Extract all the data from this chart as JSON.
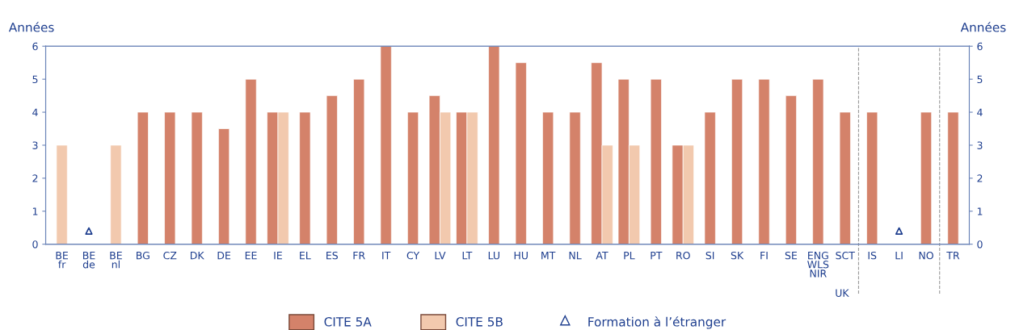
{
  "chart_data": {
    "type": "bar",
    "categories": [
      "BE\nfr",
      "BE\nde",
      "BE\nnl",
      "BG",
      "CZ",
      "DK",
      "DE",
      "EE",
      "IE",
      "EL",
      "ES",
      "FR",
      "IT",
      "CY",
      "LV",
      "LT",
      "LU",
      "HU",
      "MT",
      "NL",
      "AT",
      "PL",
      "PT",
      "RO",
      "SI",
      "SK",
      "FI",
      "SE",
      "ENG\nWLS\nNIR",
      "SCT",
      "IS",
      "LI",
      "NO",
      "TR"
    ],
    "series": [
      {
        "name": "CITE 5A",
        "color": "#d4826a",
        "values": [
          null,
          null,
          null,
          4,
          4,
          4,
          3.5,
          5,
          4,
          4,
          4.5,
          5,
          6,
          4,
          4.5,
          4,
          6,
          5.5,
          4,
          4,
          5.5,
          5,
          5,
          3,
          4,
          5,
          5,
          4.5,
          5,
          4,
          4,
          null,
          4,
          4
        ]
      },
      {
        "name": "CITE 5B",
        "color": "#f2c9ae",
        "values": [
          3,
          null,
          3,
          null,
          null,
          null,
          null,
          null,
          4,
          null,
          null,
          null,
          null,
          null,
          4,
          4,
          null,
          null,
          null,
          null,
          3,
          3,
          null,
          3,
          null,
          null,
          null,
          null,
          null,
          null,
          null,
          null,
          null,
          null
        ]
      },
      {
        "name": "Formation à l’étranger",
        "type": "scatter",
        "color": "#1f3f8f",
        "marker": "triangle",
        "values": [
          null,
          0.4,
          null,
          null,
          null,
          null,
          null,
          null,
          null,
          null,
          null,
          null,
          null,
          null,
          null,
          null,
          null,
          null,
          null,
          null,
          null,
          null,
          null,
          null,
          null,
          null,
          null,
          null,
          null,
          null,
          null,
          0.4,
          null,
          null
        ]
      }
    ],
    "ylabel": "Années",
    "y2label": "Années",
    "ylim": [
      0,
      6
    ],
    "yticks": [
      0,
      1,
      2,
      3,
      4,
      5,
      6
    ],
    "y2lim": [
      0,
      6
    ],
    "y2ticks": [
      0,
      1,
      2,
      3,
      4,
      5,
      6
    ],
    "annotations": [
      "UK"
    ],
    "legend": "bottom",
    "grid": false
  }
}
